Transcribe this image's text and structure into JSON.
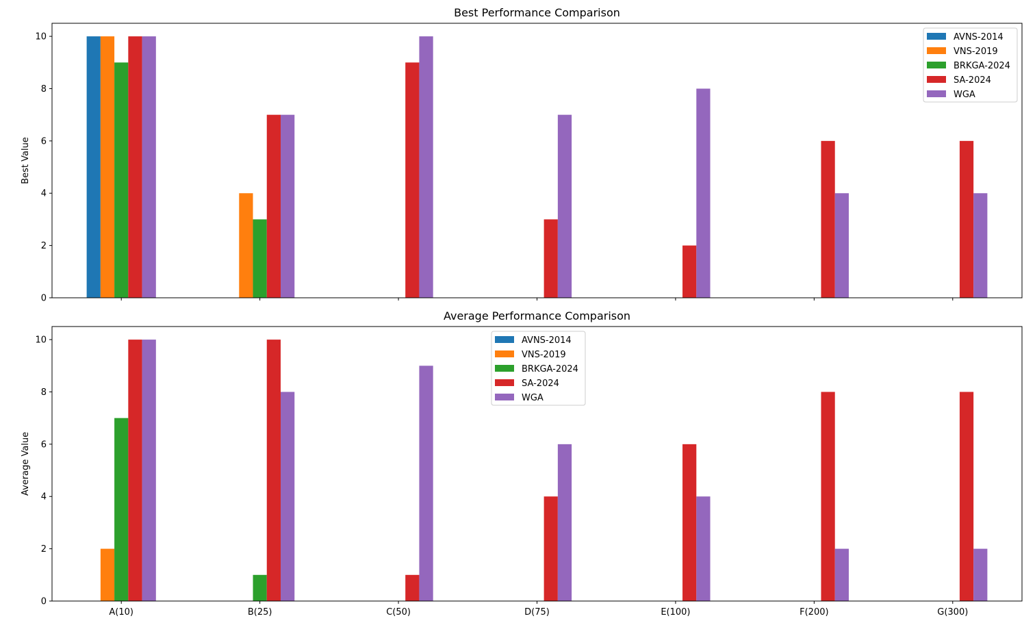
{
  "chart_data": [
    {
      "type": "bar",
      "title": "Best Performance Comparison",
      "xlabel": "",
      "ylabel": "Best Value",
      "ylim": [
        0,
        10.5
      ],
      "yticks": [
        0,
        2,
        4,
        6,
        8,
        10
      ],
      "grid": false,
      "legend_position": "upper right",
      "categories": [
        "A(10)",
        "B(25)",
        "C(50)",
        "D(75)",
        "E(100)",
        "F(200)",
        "G(300)"
      ],
      "series": [
        {
          "name": "AVNS-2014",
          "color": "#1f77b4",
          "values": [
            10,
            0,
            0,
            0,
            0,
            0,
            0
          ]
        },
        {
          "name": "VNS-2019",
          "color": "#ff7f0e",
          "values": [
            10,
            4,
            0,
            0,
            0,
            0,
            0
          ]
        },
        {
          "name": "BRKGA-2024",
          "color": "#2ca02c",
          "values": [
            9,
            3,
            0,
            0,
            0,
            0,
            0
          ]
        },
        {
          "name": "SA-2024",
          "color": "#d62728",
          "values": [
            10,
            7,
            9,
            3,
            2,
            6,
            6
          ]
        },
        {
          "name": "WGA",
          "color": "#9467bd",
          "values": [
            10,
            7,
            10,
            7,
            8,
            4,
            4
          ]
        }
      ]
    },
    {
      "type": "bar",
      "title": "Average Performance Comparison",
      "xlabel": "",
      "ylabel": "Average Value",
      "ylim": [
        0,
        10.5
      ],
      "yticks": [
        0,
        2,
        4,
        6,
        8,
        10
      ],
      "grid": false,
      "legend_position": "upper center",
      "categories": [
        "A(10)",
        "B(25)",
        "C(50)",
        "D(75)",
        "E(100)",
        "F(200)",
        "G(300)"
      ],
      "series": [
        {
          "name": "AVNS-2014",
          "color": "#1f77b4",
          "values": [
            0,
            0,
            0,
            0,
            0,
            0,
            0
          ]
        },
        {
          "name": "VNS-2019",
          "color": "#ff7f0e",
          "values": [
            2,
            0,
            0,
            0,
            0,
            0,
            0
          ]
        },
        {
          "name": "BRKGA-2024",
          "color": "#2ca02c",
          "values": [
            7,
            1,
            0,
            0,
            0,
            0,
            0
          ]
        },
        {
          "name": "SA-2024",
          "color": "#d62728",
          "values": [
            10,
            10,
            1,
            4,
            6,
            8,
            8
          ]
        },
        {
          "name": "WGA",
          "color": "#9467bd",
          "values": [
            10,
            8,
            9,
            6,
            4,
            2,
            2
          ]
        }
      ]
    }
  ]
}
